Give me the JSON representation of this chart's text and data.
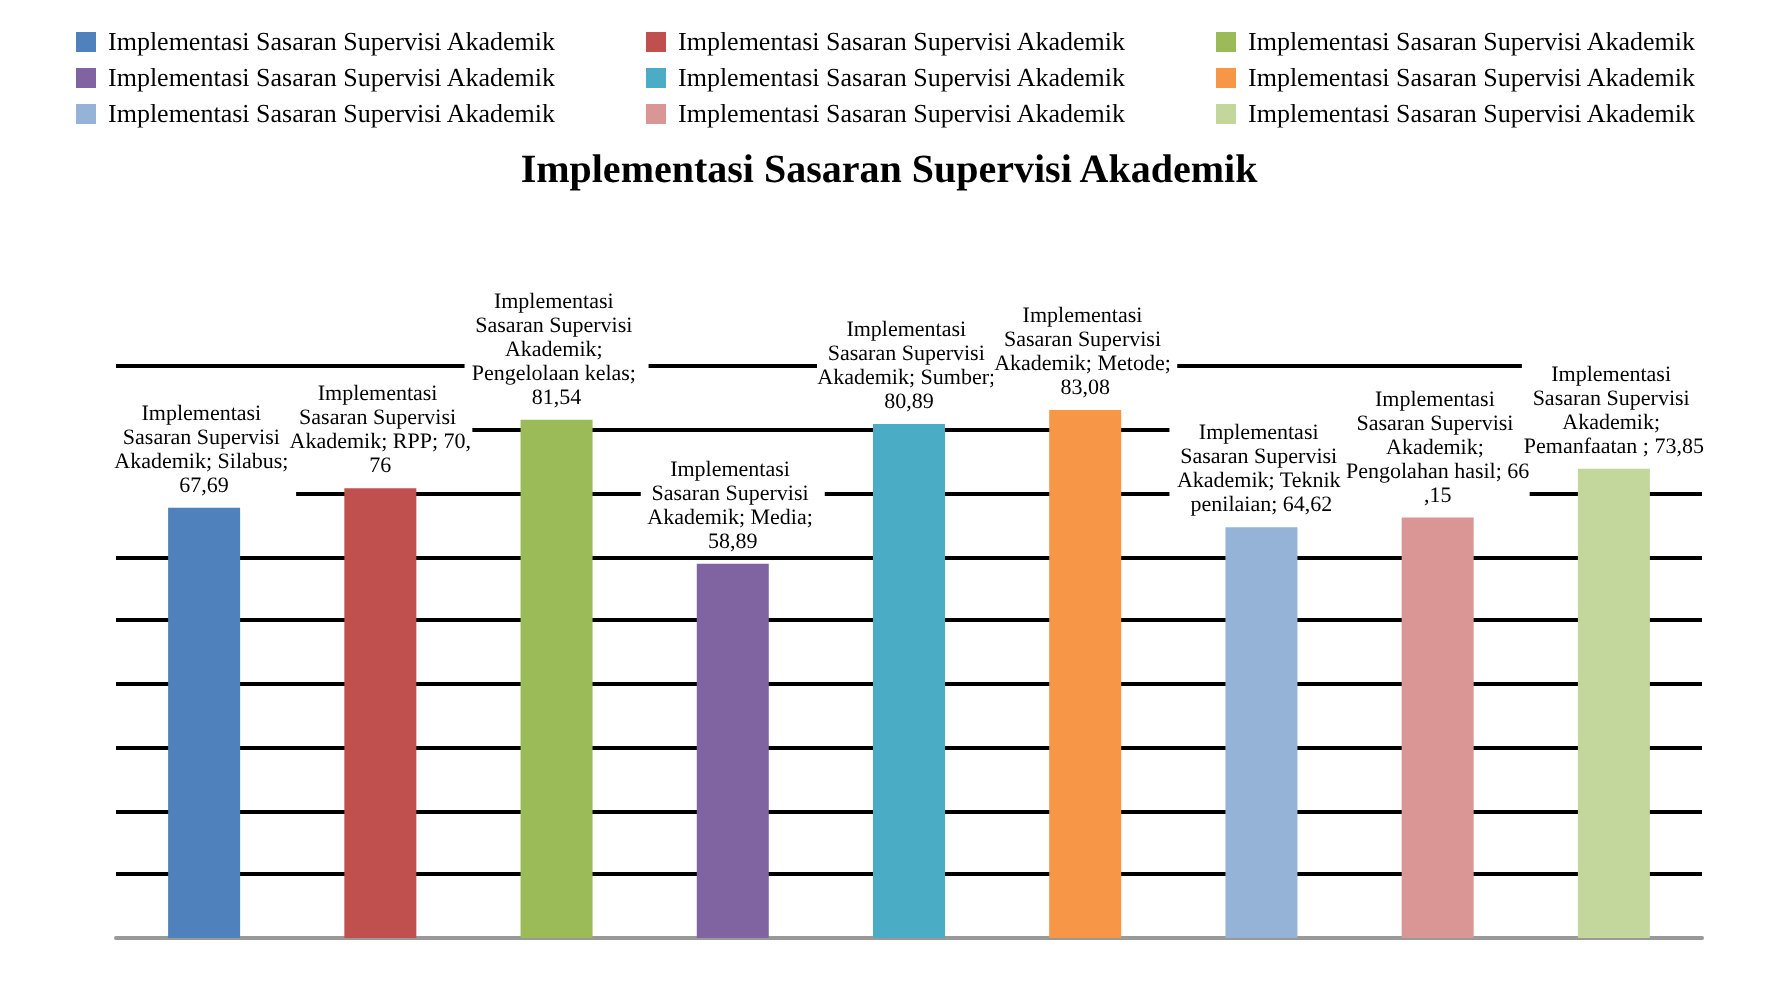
{
  "chart_data": {
    "type": "bar",
    "title": "Implementasi Sasaran Supervisi Akademik",
    "categories": [
      null,
      null,
      null,
      null,
      null,
      null,
      null,
      null,
      null
    ],
    "stacked": true,
    "series": [
      {
        "name": "Implementasi Sasaran Supervisi Akademik",
        "color": "#4f81bd",
        "values": [
          67.69,
          null,
          null,
          null,
          null,
          null,
          null,
          null,
          null
        ],
        "value_labels": [
          "Implementasi Sasaran Supervisi Akademik; Silabus; 67,69",
          null,
          null,
          null,
          null,
          null,
          null,
          null,
          null
        ]
      },
      {
        "name": "Implementasi Sasaran Supervisi Akademik",
        "color": "#c0504d",
        "values": [
          null,
          70.76,
          null,
          null,
          null,
          null,
          null,
          null,
          null
        ],
        "value_labels": [
          null,
          "Implementasi Sasaran Supervisi Akademik; RPP; 70,76",
          null,
          null,
          null,
          null,
          null,
          null,
          null
        ]
      },
      {
        "name": "Implementasi Sasaran Supervisi Akademik",
        "color": "#9bbb59",
        "values": [
          null,
          null,
          81.54,
          null,
          null,
          null,
          null,
          null,
          null
        ],
        "value_labels": [
          null,
          null,
          "Implementasi Sasaran Supervisi Akademik; Pengelolaan kelas; 81,54",
          null,
          null,
          null,
          null,
          null,
          null
        ]
      },
      {
        "name": "Implementasi Sasaran Supervisi Akademik",
        "color": "#8064a2",
        "values": [
          null,
          null,
          null,
          58.89,
          null,
          null,
          null,
          null,
          null
        ],
        "value_labels": [
          null,
          null,
          null,
          "Implementasi Sasaran Supervisi Akademik; Media; 58,89",
          null,
          null,
          null,
          null,
          null
        ]
      },
      {
        "name": "Implementasi Sasaran Supervisi Akademik",
        "color": "#4bacc6",
        "values": [
          null,
          null,
          null,
          null,
          80.89,
          null,
          null,
          null,
          null
        ],
        "value_labels": [
          null,
          null,
          null,
          null,
          "Implementasi Sasaran Supervisi Akademik; Sumber; 80,89",
          null,
          null,
          null,
          null
        ]
      },
      {
        "name": "Implementasi Sasaran Supervisi Akademik",
        "color": "#f79646",
        "values": [
          null,
          null,
          null,
          null,
          null,
          83.08,
          null,
          null,
          null
        ],
        "value_labels": [
          null,
          null,
          null,
          null,
          null,
          "Implementasi Sasaran Supervisi Akademik; Metode; 83,08",
          null,
          null,
          null
        ]
      },
      {
        "name": "Implementasi Sasaran Supervisi Akademik",
        "color": "#95b3d7",
        "values": [
          null,
          null,
          null,
          null,
          null,
          null,
          64.62,
          null,
          null
        ],
        "value_labels": [
          null,
          null,
          null,
          null,
          null,
          null,
          "Implementasi Sasaran Supervisi Akademik; Teknik penilaian; 64,62",
          null,
          null
        ]
      },
      {
        "name": "Implementasi Sasaran Supervisi Akademik",
        "color": "#d99694",
        "values": [
          null,
          null,
          null,
          null,
          null,
          null,
          null,
          66.15,
          null
        ],
        "value_labels": [
          null,
          null,
          null,
          null,
          null,
          null,
          null,
          "Implementasi Sasaran Supervisi Akademik; Pengolahan hasil; 66,15",
          null
        ]
      },
      {
        "name": "Implementasi Sasaran Supervisi Akademik",
        "color": "#c3d69b",
        "values": [
          null,
          null,
          null,
          null,
          null,
          null,
          null,
          null,
          73.85
        ],
        "value_labels": [
          null,
          null,
          null,
          null,
          null,
          null,
          null,
          null,
          "Implementasi Sasaran Supervisi Akademik; Pemanfaatan ; 73,85"
        ]
      }
    ],
    "ylim": [
      0,
      90
    ],
    "yticks": [
      {
        "value": 0,
        "label": null
      },
      {
        "value": 10,
        "label": null
      },
      {
        "value": 20,
        "label": null
      },
      {
        "value": 30,
        "label": null
      },
      {
        "value": 40,
        "label": null
      },
      {
        "value": 50,
        "label": null
      },
      {
        "value": 60,
        "label": null
      },
      {
        "value": 70,
        "label": null
      },
      {
        "value": 80,
        "label": null
      },
      {
        "value": 90,
        "label": null
      }
    ],
    "grid": "y",
    "legend": "top"
  }
}
